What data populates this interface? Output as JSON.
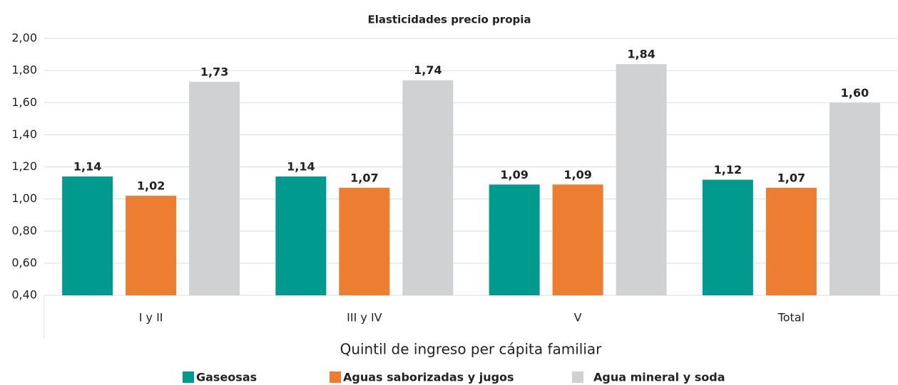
{
  "chart_data": {
    "type": "bar",
    "title": "Elasticidades precio propia",
    "x_label": "Quintil de ingreso per cápita familiar",
    "categories": [
      "I y II",
      "III y IV",
      "V",
      "Total"
    ],
    "series": [
      {
        "name": "Gaseosas",
        "color": "#009a8e",
        "values": [
          1.14,
          1.14,
          1.09,
          1.12
        ],
        "value_labels": [
          "1,14",
          "1,14",
          "1,09",
          "1,12"
        ]
      },
      {
        "name": "Aguas saborizadas y jugos",
        "color": "#ed7d31",
        "values": [
          1.02,
          1.07,
          1.09,
          1.07
        ],
        "value_labels": [
          "1,02",
          "1,07",
          "1,09",
          "1,07"
        ]
      },
      {
        "name": "Agua mineral y soda",
        "color": "#d0d1d3",
        "values": [
          1.73,
          1.74,
          1.84,
          1.6
        ],
        "value_labels": [
          "1,73",
          "1,74",
          "1,84",
          "1,60"
        ]
      }
    ],
    "ylim": [
      0.4,
      2.0
    ],
    "yticks": [
      {
        "value": 0.4,
        "label": "0,40"
      },
      {
        "value": 0.6,
        "label": "0,60"
      },
      {
        "value": 0.8,
        "label": "0,80"
      },
      {
        "value": 1.0,
        "label": "1,00"
      },
      {
        "value": 1.2,
        "label": "1,20"
      },
      {
        "value": 1.4,
        "label": "1,40"
      },
      {
        "value": 1.6,
        "label": "1,60"
      },
      {
        "value": 1.8,
        "label": "1,80"
      },
      {
        "value": 2.0,
        "label": "2,00"
      }
    ],
    "grid": true,
    "legend": "bottom"
  }
}
